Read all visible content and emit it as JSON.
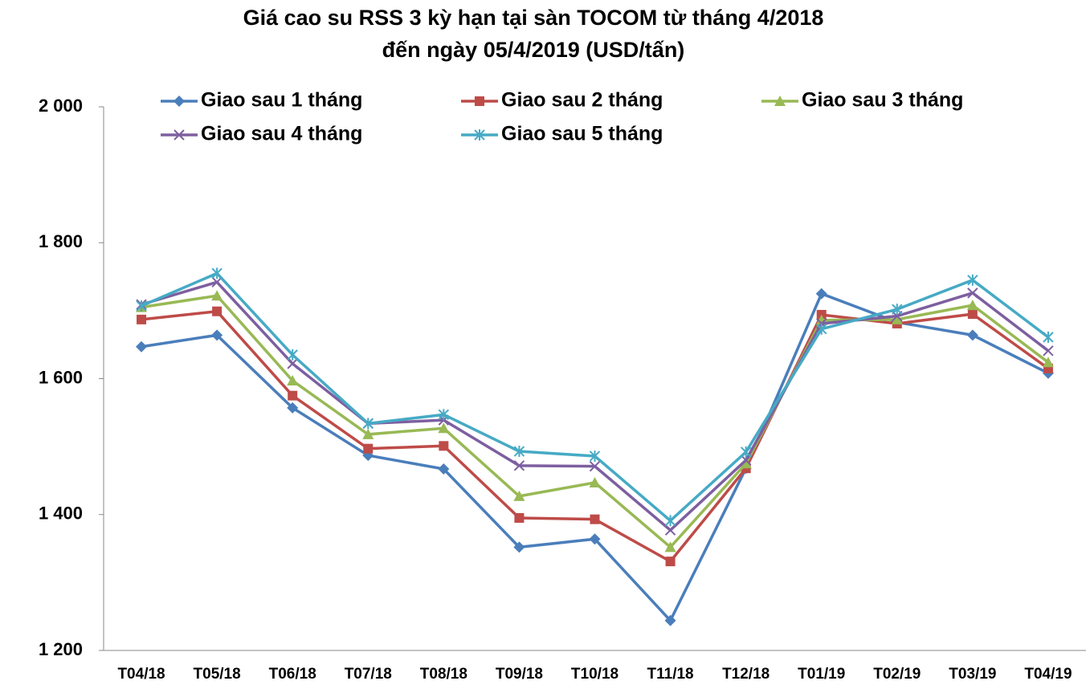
{
  "chart_data": {
    "type": "line",
    "title": [
      "Giá cao su RSS 3 kỳ hạn tại sàn TOCOM từ tháng 4/2018",
      "đến ngày 05/4/2019 (USD/tấn)"
    ],
    "categories": [
      "T04/18",
      "T05/18",
      "T06/18",
      "T07/18",
      "T08/18",
      "T09/18",
      "T10/18",
      "T11/18",
      "T12/18",
      "T01/19",
      "T02/19",
      "T03/19",
      "T04/19"
    ],
    "ylim": [
      1200,
      2000
    ],
    "yticks": [
      {
        "value": 1200,
        "label": "1 200"
      },
      {
        "value": 1400,
        "label": "1 400"
      },
      {
        "value": 1600,
        "label": "1 600"
      },
      {
        "value": 1800,
        "label": "1 800"
      },
      {
        "value": 2000,
        "label": "2 000"
      }
    ],
    "series": [
      {
        "name": "Giao sau 1 tháng",
        "color": "#4a7ebb",
        "marker": "diamond",
        "values": [
          1647,
          1664,
          1557,
          1487,
          1467,
          1352,
          1364,
          1244,
          1468,
          1725,
          1683,
          1664,
          1608
        ]
      },
      {
        "name": "Giao sau 2 tháng",
        "color": "#be4b48",
        "marker": "square",
        "values": [
          1687,
          1699,
          1575,
          1497,
          1501,
          1395,
          1393,
          1331,
          1468,
          1694,
          1681,
          1695,
          1615
        ]
      },
      {
        "name": "Giao sau 3 tháng",
        "color": "#98b954",
        "marker": "triangle",
        "values": [
          1705,
          1722,
          1597,
          1518,
          1527,
          1427,
          1447,
          1352,
          1475,
          1686,
          1687,
          1708,
          1624
        ]
      },
      {
        "name": "Giao sau 4 tháng",
        "color": "#7d5fa0",
        "marker": "cross",
        "values": [
          1709,
          1742,
          1622,
          1534,
          1539,
          1472,
          1471,
          1377,
          1480,
          1681,
          1692,
          1726,
          1641
        ]
      },
      {
        "name": "Giao sau 5 tháng",
        "color": "#46aac5",
        "marker": "star",
        "values": [
          1707,
          1755,
          1635,
          1534,
          1547,
          1493,
          1486,
          1391,
          1492,
          1673,
          1702,
          1745,
          1661
        ]
      }
    ]
  }
}
